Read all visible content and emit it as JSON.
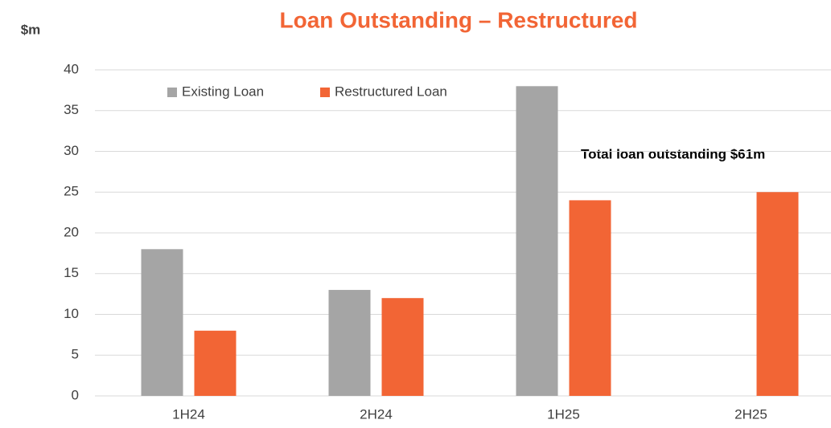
{
  "chart_data": {
    "type": "bar",
    "title": "Loan Outstanding – Restructured",
    "y_label": "$m",
    "annotation": "Total loan outstanding $61m",
    "categories": [
      "1H24",
      "2H24",
      "1H25",
      "2H25"
    ],
    "series": [
      {
        "name": "Existing Loan",
        "color": "#a5a5a5",
        "values": [
          18,
          13,
          38,
          null
        ]
      },
      {
        "name": "Restructured Loan",
        "color": "#f26535",
        "values": [
          8,
          12,
          24,
          25
        ]
      }
    ],
    "ylim": [
      0,
      40
    ],
    "yticks": [
      0,
      5,
      10,
      15,
      20,
      25,
      30,
      35,
      40
    ],
    "grid": true,
    "legend": "top-left"
  }
}
